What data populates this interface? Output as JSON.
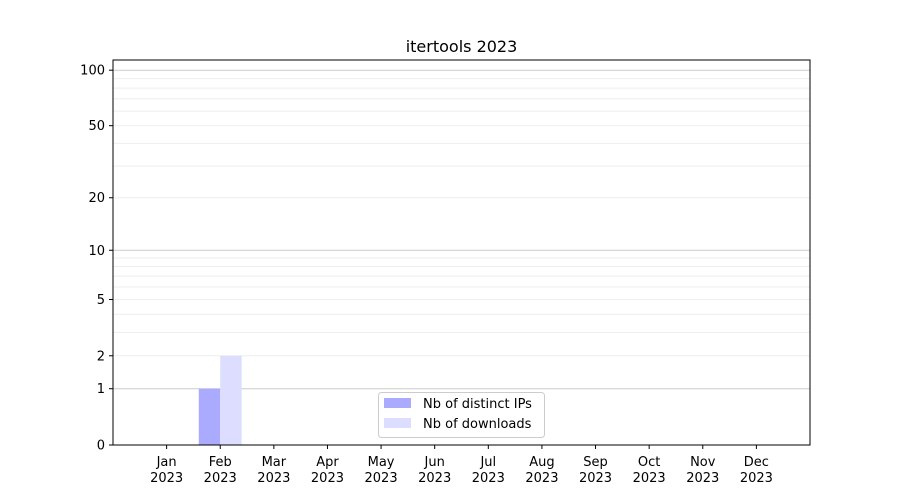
{
  "chart_data": {
    "type": "bar",
    "title": "itertools 2023",
    "xlabel": "",
    "ylabel": "",
    "categories": [
      "Jan\n2023",
      "Feb\n2023",
      "Mar\n2023",
      "Apr\n2023",
      "May\n2023",
      "Jun\n2023",
      "Jul\n2023",
      "Aug\n2023",
      "Sep\n2023",
      "Oct\n2023",
      "Nov\n2023",
      "Dec\n2023"
    ],
    "series": [
      {
        "name": "Nb of distinct IPs",
        "color": "#aaaaff",
        "values": [
          0,
          1,
          0,
          0,
          0,
          0,
          0,
          0,
          0,
          0,
          0,
          0
        ]
      },
      {
        "name": "Nb of downloads",
        "color": "#ddddff",
        "values": [
          0,
          2,
          0,
          0,
          0,
          0,
          0,
          0,
          0,
          0,
          0,
          0
        ]
      }
    ],
    "yscale": "log(1+y)",
    "ylim": [
      0,
      113.5
    ],
    "yticks": [
      0,
      1,
      2,
      5,
      10,
      20,
      50,
      100
    ],
    "ytick_labels": [
      "0",
      "1",
      "2",
      "5",
      "10",
      "20",
      "50",
      "100"
    ],
    "grid": true,
    "legend": "lower-center"
  }
}
